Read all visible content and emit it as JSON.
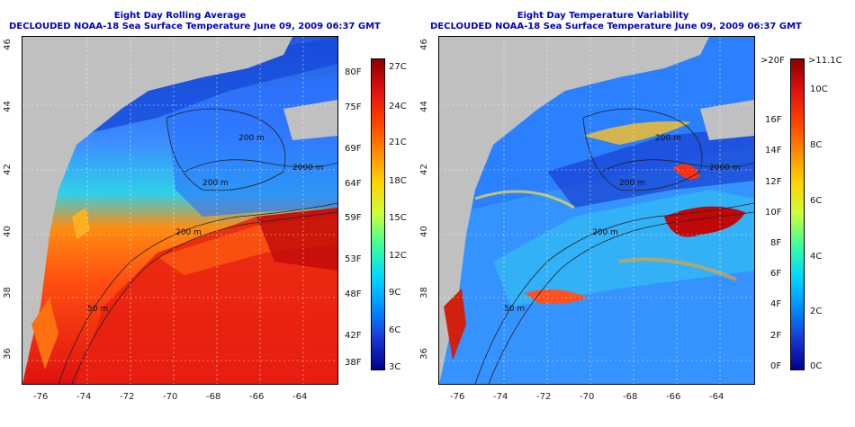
{
  "left": {
    "title": "Eight Day Rolling Average",
    "subtitle": "DECLOUDED NOAA-18 Sea Surface Temperature June 09, 2009 06:37 GMT",
    "lat_ticks": [
      "46",
      "44",
      "42",
      "40",
      "38",
      "36"
    ],
    "lon_ticks": [
      "-76",
      "-74",
      "-72",
      "-70",
      "-68",
      "-66",
      "-64"
    ],
    "contours": [
      "200 m",
      "2000 m",
      "200 m",
      "200 m",
      "50 m"
    ],
    "colorbar_f": [
      "80F",
      "75F",
      "69F",
      "64F",
      "59F",
      "53F",
      "48F",
      "42F",
      "38F"
    ],
    "colorbar_c": [
      "27C",
      "24C",
      "21C",
      "18C",
      "15C",
      "12C",
      "9C",
      "6C",
      "3C"
    ],
    "colors": [
      "#8b0000",
      "#d81010",
      "#ff3a00",
      "#ff8c00",
      "#ffd400",
      "#c8ff3c",
      "#3cff9c",
      "#00d8ff",
      "#0090ff",
      "#1838d8",
      "#00008b"
    ]
  },
  "right": {
    "title": "Eight Day Temperature Variability",
    "subtitle": "DECLOUDED NOAA-18 Sea Surface Temperature June 09, 2009 06:37 GMT",
    "lat_ticks": [
      "46",
      "44",
      "42",
      "40",
      "38",
      "36"
    ],
    "lon_ticks": [
      "-76",
      "-74",
      "-72",
      "-70",
      "-68",
      "-66",
      "-64"
    ],
    "contours": [
      "200 m",
      "2000 m",
      "200 m",
      "200 m",
      "50 m"
    ],
    "colorbar_f": [
      ">20F",
      "16F",
      "14F",
      "12F",
      "10F",
      "8F",
      "6F",
      "4F",
      "2F",
      "0F"
    ],
    "colorbar_c": [
      ">11.1C",
      "10C",
      "8C",
      "6C",
      "4C",
      "2C",
      "0C"
    ]
  }
}
